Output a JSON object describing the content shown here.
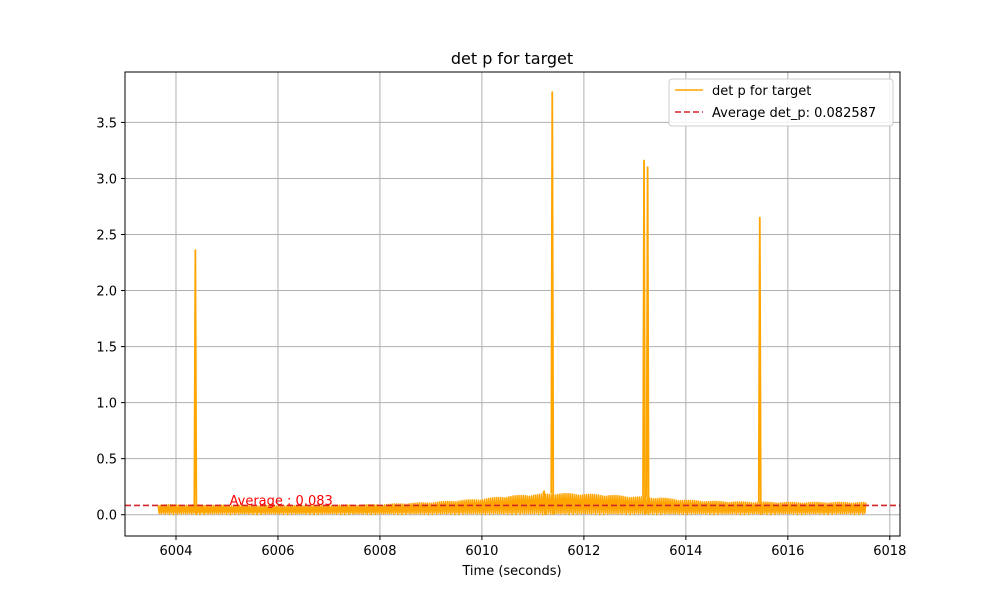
{
  "chart_data": {
    "type": "line",
    "title": "det p for target",
    "xlabel": "Time (seconds)",
    "ylabel": "",
    "xlim": [
      6003.0,
      6018.2
    ],
    "ylim": [
      -0.19,
      3.95
    ],
    "xticks": [
      6004,
      6006,
      6008,
      6010,
      6012,
      6014,
      6016,
      6018
    ],
    "yticks": [
      0.0,
      0.5,
      1.0,
      1.5,
      2.0,
      2.5,
      3.0,
      3.5
    ],
    "xtick_labels": [
      "6004",
      "6006",
      "6008",
      "6010",
      "6012",
      "6014",
      "6016",
      "6018"
    ],
    "ytick_labels": [
      "0.0",
      "0.5",
      "1.0",
      "1.5",
      "2.0",
      "2.5",
      "3.0",
      "3.5"
    ],
    "grid": true,
    "legend_placement": "top-right",
    "series": [
      {
        "name": "det p for target",
        "color": "#ffa500",
        "style": "solid",
        "time_range": [
          6003.65,
          6017.55
        ],
        "baseline_envelope": {
          "x": [
            6003.65,
            6005.0,
            6006.0,
            6007.0,
            6008.0,
            6009.0,
            6010.0,
            6010.5,
            6011.0,
            6011.5,
            6012.0,
            6012.5,
            6013.0,
            6013.5,
            6014.0,
            6014.5,
            6015.0,
            6016.0,
            6017.0,
            6017.55
          ],
          "y": [
            0.09,
            0.085,
            0.08,
            0.085,
            0.09,
            0.11,
            0.14,
            0.165,
            0.18,
            0.19,
            0.185,
            0.175,
            0.16,
            0.15,
            0.13,
            0.12,
            0.115,
            0.11,
            0.11,
            0.11
          ]
        },
        "spikes": [
          {
            "x": 6004.38,
            "y": 2.36
          },
          {
            "x": 6011.22,
            "y": 0.21
          },
          {
            "x": 6011.38,
            "y": 3.77
          },
          {
            "x": 6013.18,
            "y": 3.16
          },
          {
            "x": 6013.25,
            "y": 3.1
          },
          {
            "x": 6015.45,
            "y": 2.65
          }
        ]
      },
      {
        "name": "Average det_p: 0.082587",
        "color": "#d62728",
        "style": "dashed",
        "y": 0.082587
      }
    ],
    "annotations": [
      {
        "text": "Average : 0.083",
        "x": 6005.05,
        "y": 0.083,
        "color": "#ff0000"
      }
    ]
  }
}
